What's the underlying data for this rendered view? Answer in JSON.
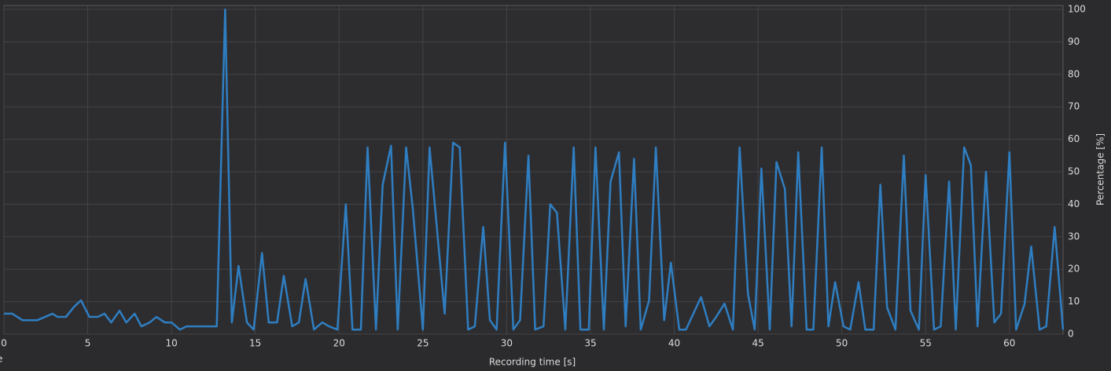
{
  "chart_data": {
    "type": "line",
    "x_label": "Recording time [s]",
    "y_label": "Percentage [%]",
    "clipped_label": "e",
    "x": [
      0,
      0.5,
      1.1,
      2.0,
      2.9,
      3.2,
      3.7,
      4.2,
      4.6,
      5.1,
      5.6,
      6.0,
      6.4,
      6.9,
      7.3,
      7.8,
      8.2,
      8.7,
      9.1,
      9.6,
      10.0,
      10.5,
      10.9,
      12.7,
      13.2,
      13.6,
      14.0,
      14.5,
      14.9,
      15.4,
      15.8,
      16.3,
      16.7,
      17.2,
      17.6,
      18.0,
      18.5,
      19.0,
      19.4,
      19.9,
      20.4,
      20.8,
      21.3,
      21.7,
      22.2,
      22.6,
      23.1,
      23.5,
      24.0,
      24.4,
      25.0,
      25.4,
      26.3,
      26.8,
      27.2,
      27.7,
      28.1,
      28.6,
      29.0,
      29.4,
      29.9,
      30.4,
      30.8,
      31.3,
      31.7,
      32.2,
      32.6,
      33.0,
      33.5,
      34.0,
      34.4,
      34.9,
      35.3,
      35.8,
      36.2,
      36.7,
      37.1,
      37.6,
      38.0,
      38.5,
      38.9,
      39.4,
      39.8,
      40.3,
      40.7,
      41.6,
      42.1,
      42.5,
      43.0,
      43.5,
      43.9,
      44.4,
      44.8,
      45.2,
      45.7,
      46.1,
      46.6,
      47.0,
      47.4,
      47.9,
      48.3,
      48.8,
      49.2,
      49.6,
      50.1,
      50.5,
      51.0,
      51.4,
      51.9,
      52.3,
      52.7,
      53.2,
      53.7,
      54.1,
      54.6,
      55.0,
      55.5,
      55.9,
      56.4,
      56.8,
      57.3,
      57.7,
      58.1,
      58.6,
      59.1,
      59.5,
      60.0,
      60.4,
      60.9,
      61.3,
      61.8,
      62.2,
      62.7,
      63.2
    ],
    "series": [
      {
        "color": "#2f7ec1",
        "values": [
          6.3,
          6.3,
          4.3,
          4.3,
          6.3,
          5.3,
          5.3,
          8.5,
          10.4,
          5.3,
          5.3,
          6.3,
          3.6,
          7.2,
          3.6,
          6.3,
          2.4,
          3.6,
          5.3,
          3.6,
          3.6,
          1.4,
          2.4,
          2.4,
          100,
          3.6,
          21,
          3.6,
          1.4,
          25,
          3.6,
          3.6,
          18,
          2.4,
          3.6,
          17,
          1.4,
          3.6,
          2.4,
          1.4,
          40,
          1.4,
          1.4,
          57.5,
          1.4,
          46,
          58,
          1.4,
          57.5,
          38.6,
          1.4,
          57.5,
          6.3,
          59,
          57.5,
          1.4,
          2.4,
          33,
          4.3,
          1.4,
          59,
          1.4,
          4.3,
          55,
          1.4,
          2.4,
          40,
          37.4,
          1.4,
          57.5,
          1.4,
          1.4,
          57.5,
          1.4,
          47,
          56,
          2.4,
          54,
          1.4,
          10.4,
          57.5,
          4.3,
          22,
          1.4,
          1.4,
          11.4,
          2.4,
          5.3,
          9.4,
          1.4,
          57.5,
          12.3,
          1.4,
          51,
          1.4,
          53,
          44.7,
          2.4,
          56,
          1.4,
          1.4,
          57.5,
          2.4,
          16,
          2.4,
          1.4,
          16,
          1.4,
          1.4,
          46,
          8.2,
          1.4,
          55,
          7.2,
          1.4,
          49,
          1.4,
          2.4,
          47,
          1.4,
          57.5,
          52,
          2.4,
          50,
          3.6,
          6.3,
          56,
          1.4,
          9.2,
          27,
          1.4,
          2.4,
          33,
          1.4
        ]
      }
    ],
    "xlim": [
      0,
      63.2
    ],
    "xticks": [
      0,
      5,
      10,
      15,
      20,
      25,
      30,
      35,
      40,
      45,
      50,
      55,
      60
    ],
    "ylim": [
      0,
      100
    ],
    "yticks": [
      0,
      10,
      20,
      30,
      40,
      50,
      60,
      70,
      80,
      90,
      100
    ],
    "grid": true
  }
}
